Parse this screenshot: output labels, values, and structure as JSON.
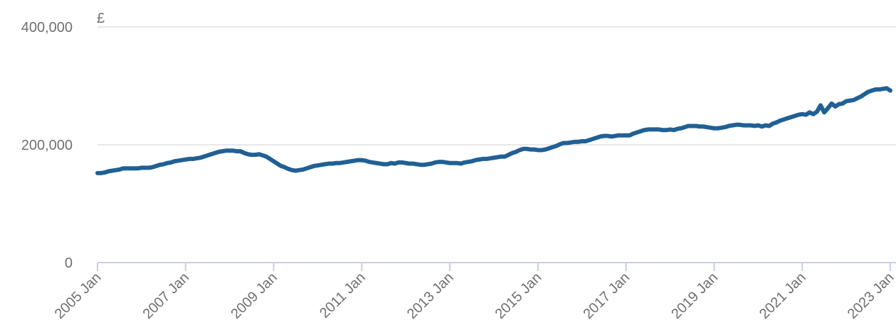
{
  "chart_data": {
    "type": "line",
    "y_unit": "£",
    "x": [
      "2005-01",
      "2005-02",
      "2005-03",
      "2005-04",
      "2005-05",
      "2005-06",
      "2005-07",
      "2005-08",
      "2005-09",
      "2005-10",
      "2005-11",
      "2005-12",
      "2006-01",
      "2006-02",
      "2006-03",
      "2006-04",
      "2006-05",
      "2006-06",
      "2006-07",
      "2006-08",
      "2006-09",
      "2006-10",
      "2006-11",
      "2006-12",
      "2007-01",
      "2007-02",
      "2007-03",
      "2007-04",
      "2007-05",
      "2007-06",
      "2007-07",
      "2007-08",
      "2007-09",
      "2007-10",
      "2007-11",
      "2007-12",
      "2008-01",
      "2008-02",
      "2008-03",
      "2008-04",
      "2008-05",
      "2008-06",
      "2008-07",
      "2008-08",
      "2008-09",
      "2008-10",
      "2008-11",
      "2008-12",
      "2009-01",
      "2009-02",
      "2009-03",
      "2009-04",
      "2009-05",
      "2009-06",
      "2009-07",
      "2009-08",
      "2009-09",
      "2009-10",
      "2009-11",
      "2009-12",
      "2010-01",
      "2010-02",
      "2010-03",
      "2010-04",
      "2010-05",
      "2010-06",
      "2010-07",
      "2010-08",
      "2010-09",
      "2010-10",
      "2010-11",
      "2010-12",
      "2011-01",
      "2011-02",
      "2011-03",
      "2011-04",
      "2011-05",
      "2011-06",
      "2011-07",
      "2011-08",
      "2011-09",
      "2011-10",
      "2011-11",
      "2011-12",
      "2012-01",
      "2012-02",
      "2012-03",
      "2012-04",
      "2012-05",
      "2012-06",
      "2012-07",
      "2012-08",
      "2012-09",
      "2012-10",
      "2012-11",
      "2012-12",
      "2013-01",
      "2013-02",
      "2013-03",
      "2013-04",
      "2013-05",
      "2013-06",
      "2013-07",
      "2013-08",
      "2013-09",
      "2013-10",
      "2013-11",
      "2013-12",
      "2014-01",
      "2014-02",
      "2014-03",
      "2014-04",
      "2014-05",
      "2014-06",
      "2014-07",
      "2014-08",
      "2014-09",
      "2014-10",
      "2014-11",
      "2014-12",
      "2015-01",
      "2015-02",
      "2015-03",
      "2015-04",
      "2015-05",
      "2015-06",
      "2015-07",
      "2015-08",
      "2015-09",
      "2015-10",
      "2015-11",
      "2015-12",
      "2016-01",
      "2016-02",
      "2016-03",
      "2016-04",
      "2016-05",
      "2016-06",
      "2016-07",
      "2016-08",
      "2016-09",
      "2016-10",
      "2016-11",
      "2016-12",
      "2017-01",
      "2017-02",
      "2017-03",
      "2017-04",
      "2017-05",
      "2017-06",
      "2017-07",
      "2017-08",
      "2017-09",
      "2017-10",
      "2017-11",
      "2017-12",
      "2018-01",
      "2018-02",
      "2018-03",
      "2018-04",
      "2018-05",
      "2018-06",
      "2018-07",
      "2018-08",
      "2018-09",
      "2018-10",
      "2018-11",
      "2018-12",
      "2019-01",
      "2019-02",
      "2019-03",
      "2019-04",
      "2019-05",
      "2019-06",
      "2019-07",
      "2019-08",
      "2019-09",
      "2019-10",
      "2019-11",
      "2019-12",
      "2020-01",
      "2020-02",
      "2020-03",
      "2020-04",
      "2020-05",
      "2020-06",
      "2020-07",
      "2020-08",
      "2020-09",
      "2020-10",
      "2020-11",
      "2020-12",
      "2021-01",
      "2021-02",
      "2021-03",
      "2021-04",
      "2021-05",
      "2021-06",
      "2021-07",
      "2021-08",
      "2021-09",
      "2021-10",
      "2021-11",
      "2021-12",
      "2022-01",
      "2022-02",
      "2022-03",
      "2022-04",
      "2022-05",
      "2022-06",
      "2022-07",
      "2022-08",
      "2022-09",
      "2022-10",
      "2022-11",
      "2022-12",
      "2023-01"
    ],
    "values": [
      152000,
      152000,
      153000,
      155000,
      156000,
      157000,
      158000,
      160000,
      160000,
      160000,
      160000,
      160000,
      161000,
      161000,
      161000,
      162000,
      164000,
      166000,
      167000,
      169000,
      170000,
      172000,
      173000,
      174000,
      175000,
      176000,
      176000,
      177000,
      178000,
      180000,
      182000,
      184000,
      186000,
      188000,
      189000,
      190000,
      190000,
      190000,
      189000,
      189000,
      186000,
      184000,
      183000,
      183000,
      184000,
      182000,
      180000,
      176000,
      172000,
      168000,
      164000,
      162000,
      159000,
      157000,
      156000,
      157000,
      158000,
      160000,
      162000,
      164000,
      165000,
      166000,
      167000,
      168000,
      168000,
      169000,
      169000,
      170000,
      171000,
      172000,
      173000,
      174000,
      174000,
      173000,
      171000,
      170000,
      169000,
      168000,
      167000,
      167000,
      169000,
      168000,
      170000,
      170000,
      169000,
      168000,
      168000,
      167000,
      166000,
      166000,
      167000,
      168000,
      170000,
      171000,
      171000,
      170000,
      169000,
      169000,
      169000,
      168000,
      170000,
      171000,
      172000,
      174000,
      175000,
      176000,
      176000,
      177000,
      178000,
      179000,
      180000,
      180000,
      183000,
      186000,
      188000,
      191000,
      193000,
      193000,
      192000,
      192000,
      191000,
      191000,
      192000,
      194000,
      196000,
      198000,
      201000,
      203000,
      203000,
      204000,
      205000,
      205000,
      206000,
      206000,
      208000,
      210000,
      212000,
      214000,
      215000,
      215000,
      214000,
      215000,
      216000,
      216000,
      216000,
      216000,
      219000,
      221000,
      223000,
      225000,
      226000,
      226000,
      226000,
      226000,
      225000,
      225000,
      226000,
      225000,
      227000,
      228000,
      230000,
      232000,
      232000,
      232000,
      231000,
      231000,
      230000,
      229000,
      228000,
      228000,
      229000,
      230000,
      232000,
      233000,
      234000,
      234000,
      233000,
      233000,
      233000,
      232000,
      233000,
      231000,
      233000,
      232000,
      236000,
      238000,
      241000,
      243000,
      245000,
      247000,
      249000,
      251000,
      252000,
      251000,
      255000,
      252000,
      256000,
      267000,
      255000,
      262000,
      270000,
      265000,
      269000,
      270000,
      274000,
      275000,
      276000,
      279000,
      282000,
      286000,
      290000,
      292000,
      294000,
      294000,
      295000,
      296000,
      292000
    ],
    "color": "#206095",
    "xlim": [
      "2005-01",
      "2023-01"
    ],
    "xticks": [
      {
        "value": "2005-01",
        "label": "2005 Jan"
      },
      {
        "value": "2007-01",
        "label": "2007 Jan"
      },
      {
        "value": "2009-01",
        "label": "2009 Jan"
      },
      {
        "value": "2011-01",
        "label": "2011 Jan"
      },
      {
        "value": "2013-01",
        "label": "2013 Jan"
      },
      {
        "value": "2015-01",
        "label": "2015 Jan"
      },
      {
        "value": "2017-01",
        "label": "2017 Jan"
      },
      {
        "value": "2019-01",
        "label": "2019 Jan"
      },
      {
        "value": "2021-01",
        "label": "2021 Jan"
      },
      {
        "value": "2023-01",
        "label": "2023 Jan"
      }
    ],
    "ylim": [
      0,
      400000
    ],
    "yticks": [
      0,
      {
        "value": 200000,
        "label": "200,000"
      },
      {
        "value": 400000,
        "label": "400,000"
      }
    ],
    "grid": true
  }
}
